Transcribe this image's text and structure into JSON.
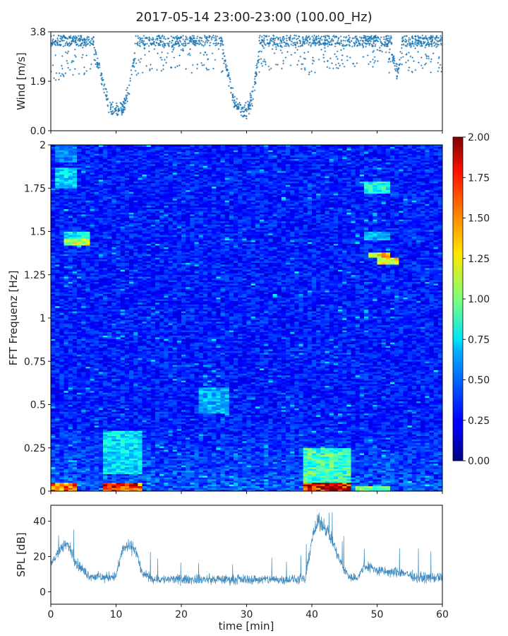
{
  "figure": {
    "title": "2017-05-14 23:00-23:00 (100.00_Hz)"
  },
  "chart_data": [
    {
      "type": "scatter",
      "panel": "wind",
      "title": "",
      "xlabel": "",
      "ylabel": "Wind [m/s]",
      "xlim": [
        0,
        60
      ],
      "ylim": [
        0,
        3.8
      ],
      "yticks": [
        {
          "value": 0.0,
          "label": "0.0"
        },
        {
          "value": 1.9,
          "label": "1.9"
        },
        {
          "value": 3.8,
          "label": "3.8"
        }
      ],
      "color": "#1f77b4",
      "profile": {
        "x": [
          0,
          2,
          4,
          6,
          7,
          8,
          9,
          10,
          11,
          12,
          13,
          14,
          16,
          18,
          20,
          22,
          23,
          24,
          25,
          26,
          27,
          28,
          29,
          30,
          31,
          32,
          33,
          35,
          37,
          39,
          40,
          41,
          42,
          43,
          44,
          45,
          46,
          48,
          50,
          51,
          52,
          53,
          54,
          56,
          58,
          60
        ],
        "y": [
          3.0,
          3.1,
          3.2,
          3.3,
          2.8,
          1.8,
          0.9,
          0.8,
          0.8,
          1.6,
          3.1,
          3.3,
          3.4,
          3.4,
          3.3,
          3.3,
          3.0,
          3.1,
          3.4,
          3.3,
          2.4,
          1.2,
          0.8,
          0.7,
          1.4,
          3.2,
          3.4,
          3.4,
          3.4,
          3.4,
          3.1,
          3.4,
          3.5,
          3.5,
          3.4,
          3.5,
          3.5,
          3.5,
          3.5,
          3.4,
          3.2,
          2.3,
          3.2,
          3.4,
          3.3,
          3.3
        ]
      }
    },
    {
      "type": "heatmap",
      "panel": "spectrogram",
      "title": "",
      "xlabel": "",
      "ylabel": "FFT Frequenz [Hz]",
      "xlim": [
        0,
        60
      ],
      "ylim": [
        0,
        2
      ],
      "yticks": [
        {
          "value": 0,
          "label": "0"
        },
        {
          "value": 0.25,
          "label": "0.25"
        },
        {
          "value": 0.5,
          "label": "0.5"
        },
        {
          "value": 0.75,
          "label": "0.75"
        },
        {
          "value": 1,
          "label": "1"
        },
        {
          "value": 1.25,
          "label": "1.25"
        },
        {
          "value": 1.5,
          "label": "1.5"
        },
        {
          "value": 1.75,
          "label": "1.75"
        },
        {
          "value": 2,
          "label": "2"
        }
      ],
      "colormap": "jet",
      "colorbar": {
        "range": [
          0.0,
          2.0
        ],
        "ticks": [
          "0.00",
          "0.25",
          "0.50",
          "0.75",
          "1.00",
          "1.25",
          "1.50",
          "1.75",
          "2.00"
        ],
        "tick_values": [
          0.0,
          0.25,
          0.5,
          0.75,
          1.0,
          1.25,
          1.5,
          1.75,
          2.0
        ]
      },
      "background_level": 0.3,
      "features": [
        {
          "t": [
            1,
            4
          ],
          "f": [
            1.75,
            1.87
          ],
          "v": 0.75
        },
        {
          "t": [
            1,
            4
          ],
          "f": [
            1.9,
            2.0
          ],
          "v": 0.55
        },
        {
          "t": [
            2,
            6
          ],
          "f": [
            1.42,
            1.46
          ],
          "v": 1.2
        },
        {
          "t": [
            2,
            6
          ],
          "f": [
            1.46,
            1.5
          ],
          "v": 0.8
        },
        {
          "t": [
            8,
            14
          ],
          "f": [
            0.1,
            0.35
          ],
          "v": 0.75
        },
        {
          "t": [
            8,
            14
          ],
          "f": [
            0.0,
            0.05
          ],
          "v": 1.8
        },
        {
          "t": [
            0,
            4
          ],
          "f": [
            0.0,
            0.05
          ],
          "v": 1.7
        },
        {
          "t": [
            23,
            27
          ],
          "f": [
            0.45,
            0.6
          ],
          "v": 0.65
        },
        {
          "t": [
            39,
            46
          ],
          "f": [
            0.0,
            0.05
          ],
          "v": 2.0
        },
        {
          "t": [
            39,
            46
          ],
          "f": [
            0.05,
            0.25
          ],
          "v": 0.95
        },
        {
          "t": [
            48,
            52
          ],
          "f": [
            1.72,
            1.79
          ],
          "v": 0.85
        },
        {
          "t": [
            49,
            52
          ],
          "f": [
            1.35,
            1.38
          ],
          "v": 1.35
        },
        {
          "t": [
            50,
            53
          ],
          "f": [
            1.31,
            1.35
          ],
          "v": 1.3
        },
        {
          "t": [
            48,
            52
          ],
          "f": [
            1.45,
            1.5
          ],
          "v": 0.65
        },
        {
          "t": [
            47,
            52
          ],
          "f": [
            0.0,
            0.03
          ],
          "v": 1.1
        }
      ]
    },
    {
      "type": "line",
      "panel": "spl",
      "title": "",
      "xlabel": "time [min]",
      "ylabel": "SPL [dB]",
      "xlim": [
        0,
        60
      ],
      "ylim": [
        -7,
        49
      ],
      "xticks": [
        0,
        10,
        20,
        30,
        40,
        50,
        60
      ],
      "yticks": [
        0,
        20,
        40
      ],
      "color": "#1f77b4",
      "series": [
        {
          "x": [
            0,
            1,
            2,
            2.5,
            3,
            4,
            5,
            6,
            8,
            10,
            11,
            12,
            13,
            14,
            16,
            20,
            25,
            30,
            35,
            39,
            40,
            41,
            42,
            43,
            44,
            45,
            46,
            47,
            48,
            49,
            50,
            52,
            54,
            56,
            58,
            60
          ],
          "values": [
            15,
            22,
            26,
            27,
            24,
            16,
            12,
            9,
            8,
            9,
            24,
            26,
            24,
            10,
            7,
            7,
            7,
            7,
            7,
            7,
            30,
            40,
            37,
            30,
            20,
            12,
            8,
            8,
            14,
            14,
            12,
            11,
            11,
            8,
            8,
            8
          ]
        }
      ]
    }
  ]
}
